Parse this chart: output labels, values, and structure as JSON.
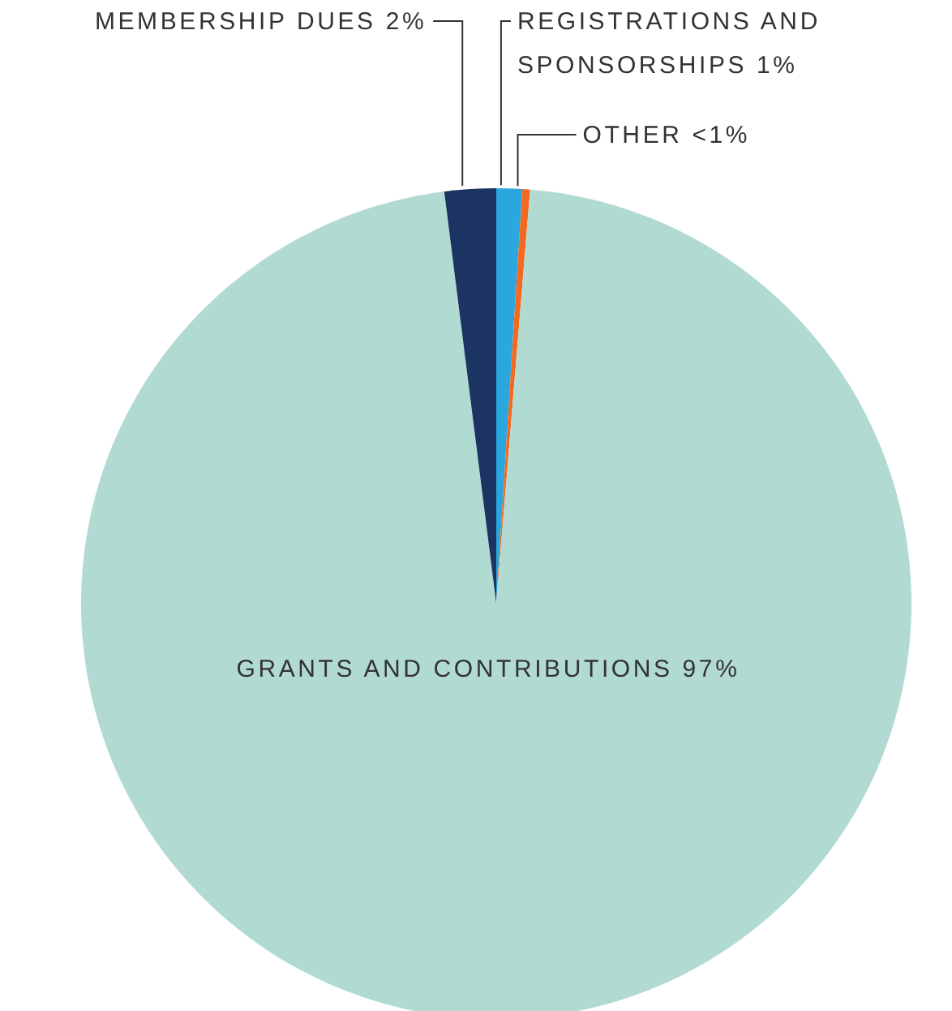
{
  "chart_data": {
    "type": "pie",
    "categories": [
      "REGISTRATIONS AND SPONSORSHIPS",
      "OTHER",
      "GRANTS AND CONTRIBUTIONS",
      "MEMBERSHIP DUES"
    ],
    "values": [
      1,
      0.3,
      96.7,
      2
    ],
    "value_labels": [
      "1%",
      "<1%",
      "97%",
      "2%"
    ],
    "colors": [
      "#2aa7df",
      "#f26a21",
      "#b1dbd2",
      "#1b3461"
    ]
  }
}
